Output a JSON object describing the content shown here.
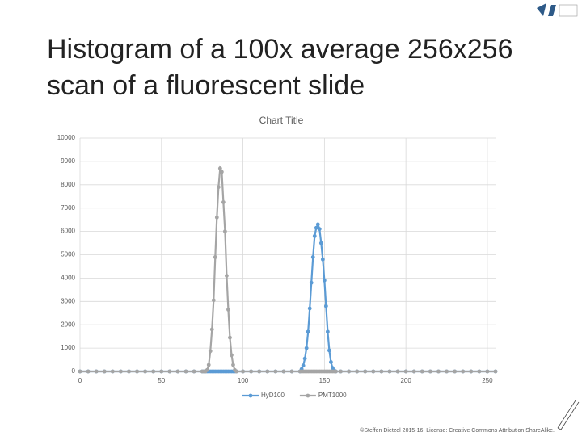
{
  "slide": {
    "title_lines": [
      "Histogram of a 100x average 256x256",
      "scan of a fluorescent slide"
    ],
    "footer": "©Steffen Dietzel 2015-16. License: Creative Commons Attribution ShareAlike."
  },
  "chart_data": {
    "type": "line",
    "title": "Chart Title",
    "x": [
      0,
      5,
      10,
      15,
      20,
      25,
      30,
      35,
      40,
      45,
      50,
      55,
      60,
      65,
      70,
      75,
      76,
      77,
      78,
      79,
      80,
      81,
      82,
      83,
      84,
      85,
      86,
      87,
      88,
      89,
      90,
      91,
      92,
      93,
      94,
      95,
      96,
      100,
      105,
      110,
      115,
      120,
      125,
      130,
      135,
      136,
      137,
      138,
      139,
      140,
      141,
      142,
      143,
      144,
      145,
      146,
      147,
      148,
      149,
      150,
      151,
      152,
      153,
      154,
      155,
      156,
      157,
      160,
      165,
      170,
      175,
      180,
      185,
      190,
      195,
      200,
      205,
      210,
      215,
      220,
      225,
      230,
      235,
      240,
      245,
      250,
      255
    ],
    "series": [
      {
        "name": "HyD100",
        "color": "#5b9bd5",
        "values": [
          0,
          0,
          0,
          0,
          0,
          0,
          0,
          0,
          0,
          0,
          0,
          0,
          0,
          0,
          0,
          0,
          0,
          0,
          0,
          0,
          0,
          0,
          0,
          0,
          0,
          0,
          0,
          0,
          0,
          0,
          0,
          0,
          0,
          0,
          0,
          0,
          0,
          0,
          0,
          0,
          0,
          0,
          0,
          0,
          0,
          100,
          250,
          550,
          1000,
          1700,
          2700,
          3800,
          4900,
          5800,
          6150,
          6300,
          6100,
          5500,
          4800,
          3900,
          2800,
          1700,
          900,
          400,
          150,
          50,
          0,
          0,
          0,
          0,
          0,
          0,
          0,
          0,
          0,
          0,
          0,
          0,
          0,
          0,
          0,
          0,
          0,
          0,
          0,
          0,
          0
        ]
      },
      {
        "name": "PMT1000",
        "color": "#a5a5a5",
        "values": [
          0,
          0,
          0,
          0,
          0,
          0,
          0,
          0,
          0,
          0,
          0,
          0,
          0,
          0,
          0,
          0,
          0,
          0,
          60,
          280,
          870,
          1800,
          3050,
          4900,
          6600,
          7900,
          8700,
          8550,
          7250,
          6000,
          4100,
          2650,
          1450,
          700,
          280,
          60,
          0,
          0,
          0,
          0,
          0,
          0,
          0,
          0,
          0,
          0,
          0,
          0,
          0,
          0,
          0,
          0,
          0,
          0,
          0,
          0,
          0,
          0,
          0,
          0,
          0,
          0,
          0,
          0,
          0,
          0,
          0,
          0,
          0,
          0,
          0,
          0,
          0,
          0,
          0,
          0,
          0,
          0,
          0,
          0,
          0,
          0,
          0,
          0,
          0,
          0,
          0
        ]
      }
    ],
    "xlim": [
      0,
      255
    ],
    "xticks": [
      0,
      50,
      100,
      150,
      200,
      250
    ],
    "ylim": [
      0,
      10000
    ],
    "yticks": [
      0,
      1000,
      2000,
      3000,
      4000,
      5000,
      6000,
      7000,
      8000,
      9000,
      10000
    ],
    "grid": true,
    "legend": "bottom"
  }
}
